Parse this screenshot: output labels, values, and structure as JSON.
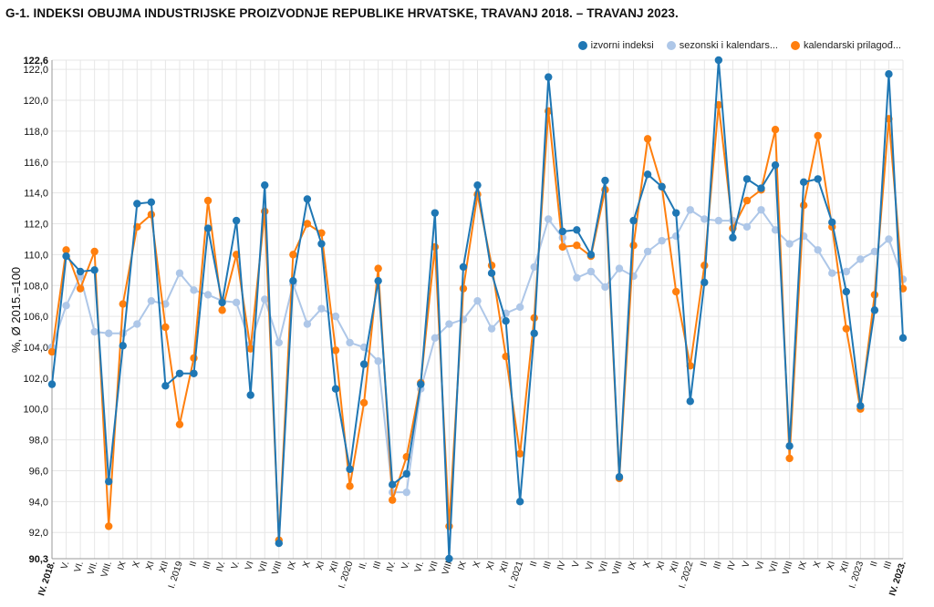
{
  "title": "G-1. INDEKSI OBUJMA INDUSTRIJSKE PROIZVODNJE REPUBLIKE HRVATSKE, TRAVANJ 2018. – TRAVANJ 2023.",
  "legend": [
    {
      "label": "izvorni indeksi",
      "color": "#1f77b4"
    },
    {
      "label": "sezonski i kalendars...",
      "color": "#aec7e8"
    },
    {
      "label": "kalendarski prilagođ...",
      "color": "#ff7f0e"
    }
  ],
  "chart_data": {
    "type": "line",
    "ylabel": "%, Ø 2015.=100",
    "ylim": [
      90.3,
      122.6
    ],
    "yticks": [
      "90,3",
      "92,0",
      "94,0",
      "96,0",
      "98,0",
      "100,0",
      "102,0",
      "104,0",
      "106,0",
      "108,0",
      "110,0",
      "112,0",
      "114,0",
      "116,0",
      "118,0",
      "120,0",
      "122,0",
      "122,6"
    ],
    "grid": true,
    "legend_position": "top-right",
    "categories": [
      "IV. 2018.",
      "V.",
      "VI.",
      "VII.",
      "VIII.",
      "IX",
      "X",
      "XI",
      "XII",
      "I. 2019",
      "II",
      "III",
      "IV.",
      "V.",
      "VI",
      "VII",
      "VIII",
      "IX",
      "X",
      "XI",
      "XII",
      "I. 2020",
      "II.",
      "III",
      "IV.",
      "V.",
      "VI.",
      "VII",
      "VIII",
      "IX",
      "X",
      "XI",
      "XII",
      "I. 2021",
      "II",
      "III",
      "IV",
      "V",
      "VI",
      "VII",
      "VIII",
      "IX",
      "X",
      "XI",
      "XII",
      "I. 2022",
      "II",
      "III",
      "IV",
      "V",
      "VI",
      "VII",
      "VIII",
      "IX",
      "X",
      "XI",
      "XII",
      "I. 2023",
      "II",
      "III",
      "IV. 2023."
    ],
    "series": [
      {
        "name": "izvorni indeksi",
        "values": [
          101.6,
          109.9,
          108.9,
          109.0,
          95.3,
          104.1,
          113.3,
          113.4,
          101.5,
          102.3,
          102.3,
          111.7,
          106.9,
          112.2,
          100.9,
          114.5,
          91.3,
          108.3,
          113.6,
          110.7,
          101.3,
          96.1,
          102.9,
          108.3,
          95.1,
          95.8,
          101.6,
          112.7,
          90.3,
          109.2,
          114.5,
          108.8,
          105.7,
          94.0,
          104.9,
          121.5,
          111.5,
          111.6,
          110.0,
          114.8,
          95.6,
          112.2,
          115.2,
          114.4,
          112.7,
          100.5,
          108.2,
          122.6,
          111.1,
          114.9,
          114.3,
          115.8,
          97.6,
          114.7,
          114.9,
          112.1,
          107.6,
          100.2,
          106.4,
          121.7,
          104.6
        ]
      },
      {
        "name": "sezonski i kalendars...",
        "values": [
          104.0,
          106.7,
          108.6,
          105.0,
          104.9,
          104.9,
          105.5,
          107.0,
          106.8,
          108.8,
          107.7,
          107.4,
          107.0,
          106.9,
          104.2,
          107.1,
          104.3,
          108.1,
          105.5,
          106.5,
          106.0,
          104.3,
          104.0,
          103.1,
          94.6,
          94.6,
          101.3,
          104.6,
          105.5,
          105.8,
          107.0,
          105.2,
          106.2,
          106.6,
          109.2,
          112.3,
          111.1,
          108.5,
          108.9,
          107.9,
          109.1,
          108.6,
          110.2,
          110.9,
          111.2,
          112.9,
          112.3,
          112.2,
          112.2,
          111.8,
          112.9,
          111.6,
          110.7,
          111.2,
          110.3,
          108.8,
          108.9,
          109.7,
          110.2,
          111.0,
          108.4
        ]
      },
      {
        "name": "kalendarski prilagođ...",
        "values": [
          103.7,
          110.3,
          107.8,
          110.2,
          92.4,
          106.8,
          111.8,
          112.6,
          105.3,
          99.0,
          103.3,
          113.5,
          106.4,
          110.0,
          103.9,
          112.8,
          91.5,
          110.0,
          112.0,
          111.4,
          103.8,
          95.0,
          100.4,
          109.1,
          94.1,
          96.9,
          101.7,
          110.5,
          92.4,
          107.8,
          113.9,
          109.3,
          103.4,
          97.1,
          105.9,
          119.3,
          110.5,
          110.6,
          109.9,
          114.2,
          95.5,
          110.6,
          117.5,
          114.4,
          107.6,
          102.8,
          109.3,
          119.7,
          111.7,
          113.5,
          114.2,
          118.1,
          96.8,
          113.2,
          117.7,
          111.8,
          105.2,
          100.0,
          107.4,
          118.8,
          107.8
        ]
      }
    ]
  }
}
